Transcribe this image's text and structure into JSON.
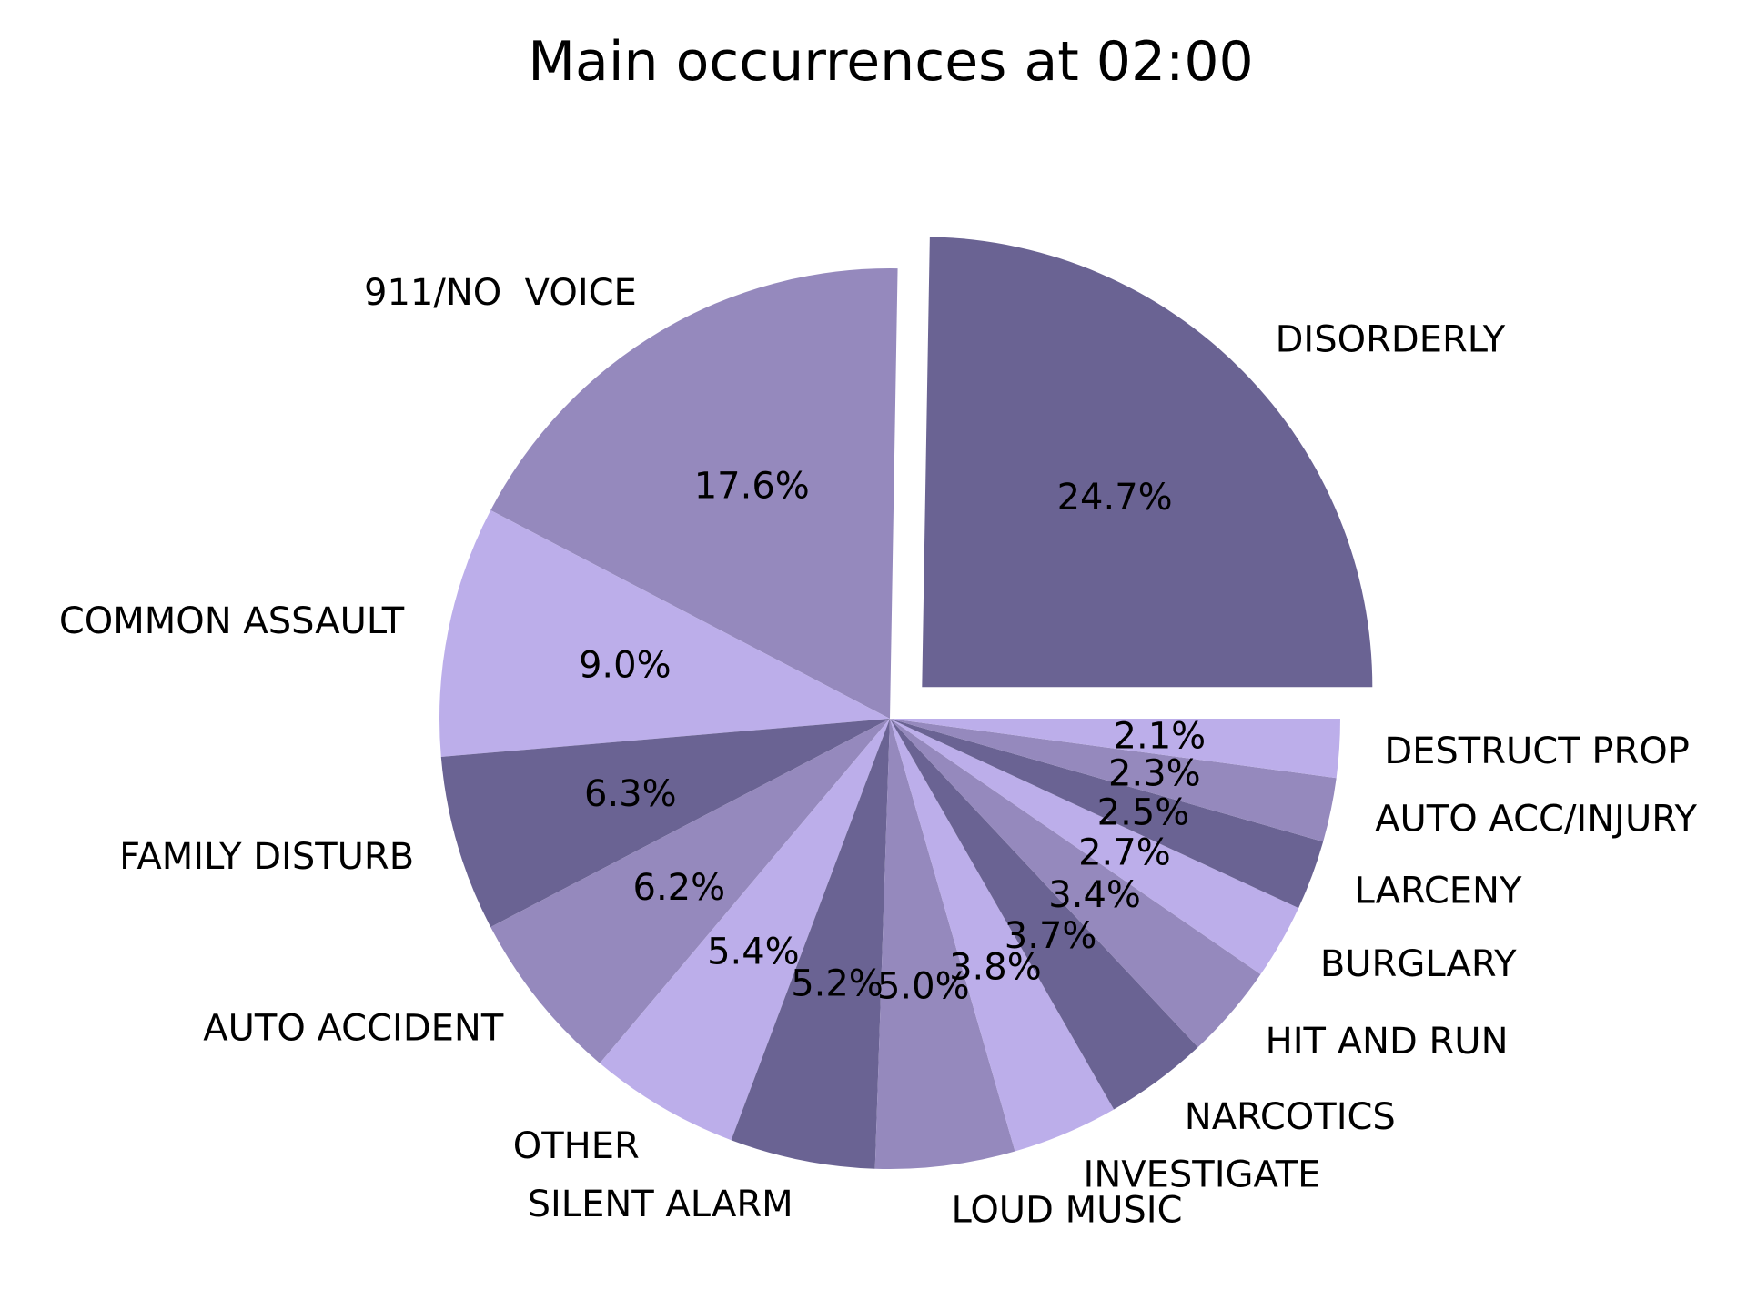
{
  "chart_data": {
    "type": "pie",
    "title": "Main occurrences at 02:00",
    "start_angle_deg": 0,
    "direction": "counterclockwise",
    "colors": [
      "#6a6393",
      "#9589bd",
      "#bcaeea"
    ],
    "slices": [
      {
        "label": "DISORDERLY",
        "value": 24.7,
        "pct_label": "24.7%",
        "explode": true
      },
      {
        "label": "911/NO  VOICE",
        "value": 17.6,
        "pct_label": "17.6%"
      },
      {
        "label": "COMMON ASSAULT",
        "value": 9.0,
        "pct_label": "9.0%"
      },
      {
        "label": "FAMILY DISTURB",
        "value": 6.3,
        "pct_label": "6.3%"
      },
      {
        "label": "AUTO ACCIDENT",
        "value": 6.2,
        "pct_label": "6.2%"
      },
      {
        "label": "OTHER",
        "value": 5.4,
        "pct_label": "5.4%"
      },
      {
        "label": "SILENT ALARM",
        "value": 5.2,
        "pct_label": "5.2%"
      },
      {
        "label": "LOUD MUSIC",
        "value": 5.0,
        "pct_label": "5.0%"
      },
      {
        "label": "INVESTIGATE",
        "value": 3.8,
        "pct_label": "3.8%"
      },
      {
        "label": "NARCOTICS",
        "value": 3.7,
        "pct_label": "3.7%"
      },
      {
        "label": "HIT AND RUN",
        "value": 3.4,
        "pct_label": "3.4%"
      },
      {
        "label": "BURGLARY",
        "value": 2.7,
        "pct_label": "2.7%"
      },
      {
        "label": "LARCENY",
        "value": 2.5,
        "pct_label": "2.5%"
      },
      {
        "label": "AUTO ACC/INJURY",
        "value": 2.3,
        "pct_label": "2.3%"
      },
      {
        "label": "DESTRUCT PROP",
        "value": 2.1,
        "pct_label": "2.1%"
      }
    ]
  }
}
